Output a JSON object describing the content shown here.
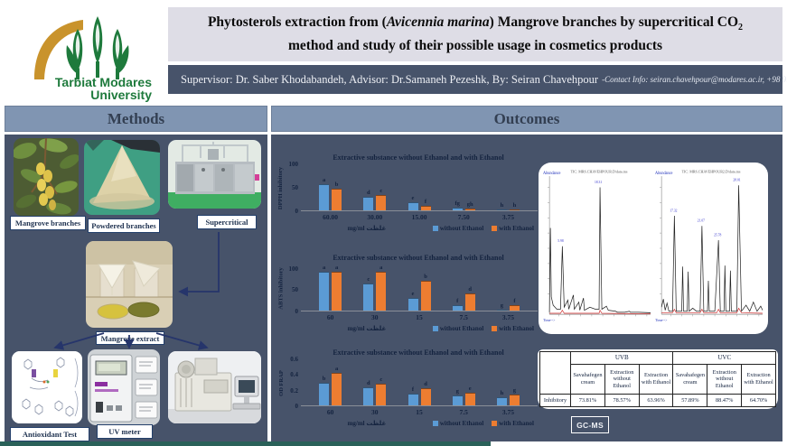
{
  "logo": {
    "line1": "Tarbiat Modares",
    "line2": "University"
  },
  "header": {
    "title_pre": "Phytosterols extraction from (",
    "title_italic": "Avicennia marina",
    "title_mid": ") Mangrove branches by supercritical CO",
    "title_sub": "2",
    "title_post": " method and study of their possible usage in cosmetics products",
    "supervisor_line": "Supervisor: Dr. Saber Khodabandeh, Advisor: Dr.Samaneh Pezeshk, By: Seiran Chavehpour",
    "contact_info": "-Contact Info: seiran.chavehpour@modares.ac.ir, +98 9141859527"
  },
  "methods": {
    "header": "Methods",
    "labels": {
      "mangrove_branches": "Mangrove branches",
      "powdered_branches": "Powdered branches",
      "supercritical": "Supercritical",
      "mangrove_extract": "Mangrove extract",
      "antioxidant_test": "Antioxidant Test",
      "uv_meter": "UV meter"
    }
  },
  "outcomes": {
    "header": "Outcomes",
    "gcms_label": "GC-MS",
    "chromatograms": {
      "left_title": "TIC: MRS.CHAVEHPOUR.D\\data.ms",
      "right_title": "TIC: MRS.CHAVEHPOUR2.D\\data.ms",
      "y_label": "Abundance",
      "x_label": "Time-->",
      "left_peak_labels": [
        "5.98",
        "18.31"
      ],
      "right_peak_labels": [
        "17.32",
        "21.07",
        "25.78",
        "28.01"
      ]
    },
    "table": {
      "group_headers": [
        "UVB",
        "UVC"
      ],
      "sub_headers": [
        "Savahafegen cream",
        "Extraction without Ethanol",
        "Extraction with Ethanol",
        "Savahafegen cream",
        "Extraction without Ethanol",
        "Extraction with Ethanol"
      ],
      "row_label": "Inhibitory",
      "values": [
        "73.81%",
        "78.57%",
        "63.96%",
        "57.89%",
        "88.47%",
        "64.70%"
      ]
    }
  },
  "chart_data": [
    {
      "type": "bar",
      "title": "Extractive substance without Ethanol and with Ethanol",
      "ylabel": "DPPH inhibitory",
      "xlabel_en": "mg/ml",
      "xlabel_fa": "غلظت",
      "ylim": [
        0,
        100
      ],
      "yticks": [
        0,
        50,
        100
      ],
      "grid": false,
      "legend_position": "bottom-right",
      "categories": [
        "60.00",
        "30.00",
        "15.00",
        "7.50",
        "3.75"
      ],
      "series": [
        {
          "name": "without Ethanol",
          "values": [
            57,
            30,
            17,
            6,
            1.5
          ],
          "letters": [
            "a",
            "d",
            "e",
            "fg",
            "h"
          ]
        },
        {
          "name": "with Ethanol",
          "values": [
            47,
            33,
            9,
            3,
            1.5
          ],
          "letters": [
            "b",
            "c",
            "f",
            "gh",
            "h"
          ]
        }
      ]
    },
    {
      "type": "bar",
      "title": "Extractive substance without Ethanol and with Ethanol",
      "ylabel": "ABTS inhibitory",
      "xlabel_en": "mg/ml",
      "xlabel_fa": "غلظت",
      "ylim": [
        0,
        110
      ],
      "yticks": [
        0,
        50,
        100
      ],
      "grid": false,
      "legend_position": "bottom-right",
      "categories": [
        "60",
        "30",
        "15",
        "7.5",
        "3.75"
      ],
      "series": [
        {
          "name": "without Ethanol",
          "values": [
            93,
            65,
            30,
            13,
            2
          ],
          "letters": [
            "a",
            "c",
            "e",
            "f",
            "g"
          ]
        },
        {
          "name": "with Ethanol",
          "values": [
            97,
            95,
            72,
            40,
            12
          ],
          "letters": [
            "a",
            "a",
            "b",
            "d",
            "f"
          ]
        }
      ]
    },
    {
      "type": "bar",
      "title": "Extractive substance without Ethanol and with Ethanol",
      "ylabel": "OD FRAP",
      "xlabel_en": "mg/ml",
      "xlabel_fa": "غلظت",
      "ylim": [
        0,
        0.6
      ],
      "yticks": [
        0,
        0.2,
        0.4,
        0.6
      ],
      "grid": false,
      "legend_position": "bottom-right",
      "categories": [
        "60",
        "30",
        "15",
        "7.5",
        "3.75"
      ],
      "series": [
        {
          "name": "without Ethanol",
          "values": [
            0.3,
            0.23,
            0.15,
            0.13,
            0.11
          ],
          "letters": [
            "b",
            "d",
            "f",
            "g",
            "h"
          ]
        },
        {
          "name": "with Ethanol",
          "values": [
            0.42,
            0.28,
            0.22,
            0.17,
            0.14
          ],
          "letters": [
            "a",
            "c",
            "d",
            "e",
            "g"
          ]
        }
      ]
    }
  ],
  "colors": {
    "series_blue": "#5B9BD5",
    "series_orange": "#ED7D31",
    "panel_slate": "#47536A",
    "band_blue": "#8095B2",
    "title_box": "#DEDDE6",
    "accent_navy": "#1C2B4A",
    "logo_green": "#1E7A3C",
    "logo_gold": "#C9932C",
    "footer_teal": "#2A6159"
  }
}
